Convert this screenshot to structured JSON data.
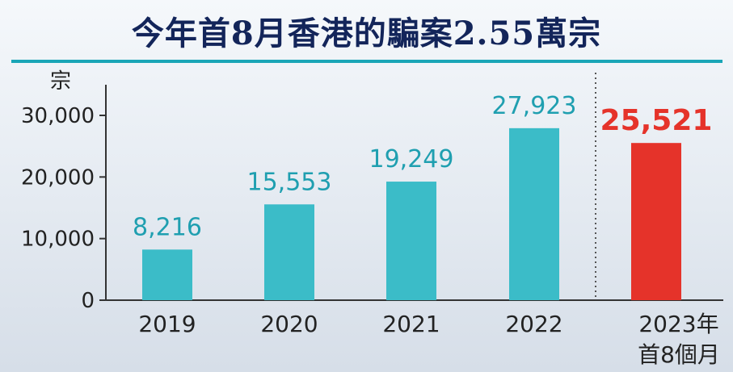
{
  "header": {
    "title": "今年首8月香港的騙案2.55萬宗"
  },
  "chart_data": {
    "type": "bar",
    "title": "今年首8月香港的騙案2.55萬宗",
    "ylabel": "宗",
    "xlabel": "",
    "ylim": [
      0,
      33000
    ],
    "yticks": [
      "0",
      "10,000",
      "20,000",
      "30,000"
    ],
    "ytick_values": [
      0,
      10000,
      20000,
      30000
    ],
    "categories": [
      "2019",
      "2020",
      "2021",
      "2022",
      "2023年\n首8個月"
    ],
    "values": [
      8216,
      15553,
      19249,
      27923,
      25521
    ],
    "value_labels": [
      "8,216",
      "15,553",
      "19,249",
      "27,923",
      "25,521"
    ],
    "highlight_index": 4,
    "colors": {
      "bar": "#3bbcc8",
      "highlight": "#e5332a",
      "label": "#1f9fb0",
      "axis": "#333333"
    },
    "grid": false
  }
}
